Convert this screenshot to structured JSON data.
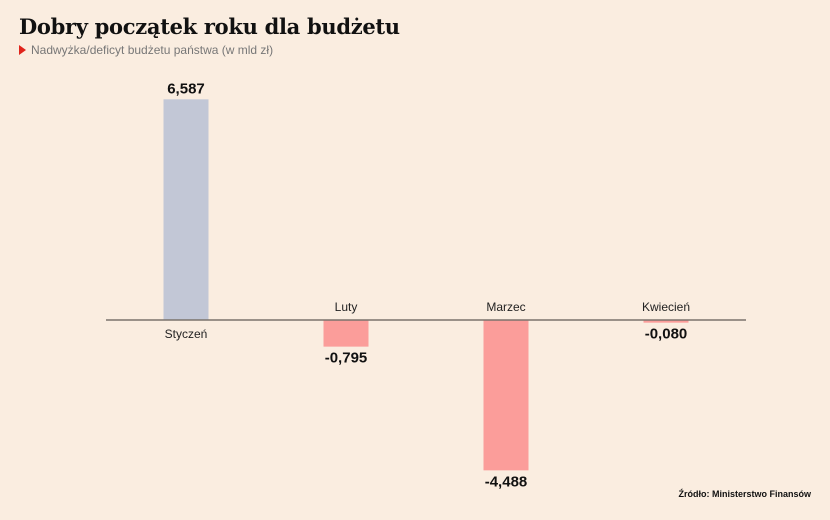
{
  "title": "Dobry początek roku dla budżetu",
  "subtitle": "Nadwyżka/deficyt budżetu państwa (w mld zł)",
  "source": "Źródło: Ministerstwo Finansów",
  "colors": {
    "positive": "#c2c7d6",
    "negative": "#fb9d9a",
    "axis": "#7a736c",
    "marker": "#e0241b"
  },
  "chart_data": {
    "type": "bar",
    "title": "Dobry początek roku dla budżetu",
    "subtitle": "Nadwyżka/deficyt budżetu państwa (w mld zł)",
    "categories": [
      "Styczeń",
      "Luty",
      "Marzec",
      "Kwiecień"
    ],
    "values": [
      6.587,
      -0.795,
      -4.488,
      -0.08
    ],
    "value_labels": [
      "6,587",
      "-0,795",
      "-4,488",
      "-0,080"
    ],
    "ylim": [
      -4.488,
      6.587
    ],
    "grid": false,
    "legend": "none"
  }
}
